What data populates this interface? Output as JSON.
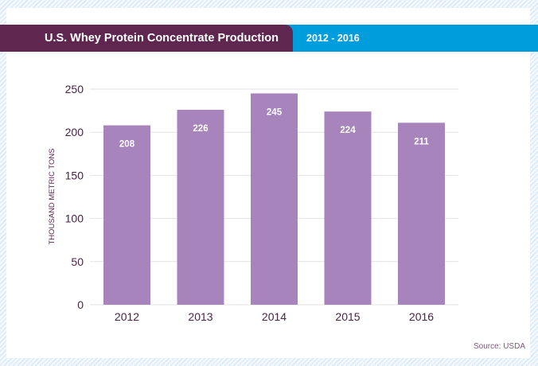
{
  "header": {
    "title": "U.S. Whey Protein Concentrate Production",
    "date_range": "2012 - 2016"
  },
  "source": "Source: USDA",
  "colors": {
    "title_band": "#5f2750",
    "range_band": "#009ddc",
    "bar": "#a884bd",
    "text": "#4a2346"
  },
  "chart_data": {
    "type": "bar",
    "title": "U.S. Whey Protein Concentrate Production",
    "subtitle": "2012 - 2016",
    "categories": [
      "2012",
      "2013",
      "2014",
      "2015",
      "2016"
    ],
    "values": [
      208,
      226,
      245,
      224,
      211
    ],
    "data_labels": [
      "208",
      "226",
      "245",
      "224",
      "211"
    ],
    "xlabel": "",
    "ylabel": "THOUSAND METRIC TONS",
    "ylim": [
      0,
      250
    ],
    "yticks": [
      0,
      50,
      100,
      150,
      200,
      250
    ],
    "grid": true,
    "legend": "none",
    "source": "Source: USDA"
  }
}
